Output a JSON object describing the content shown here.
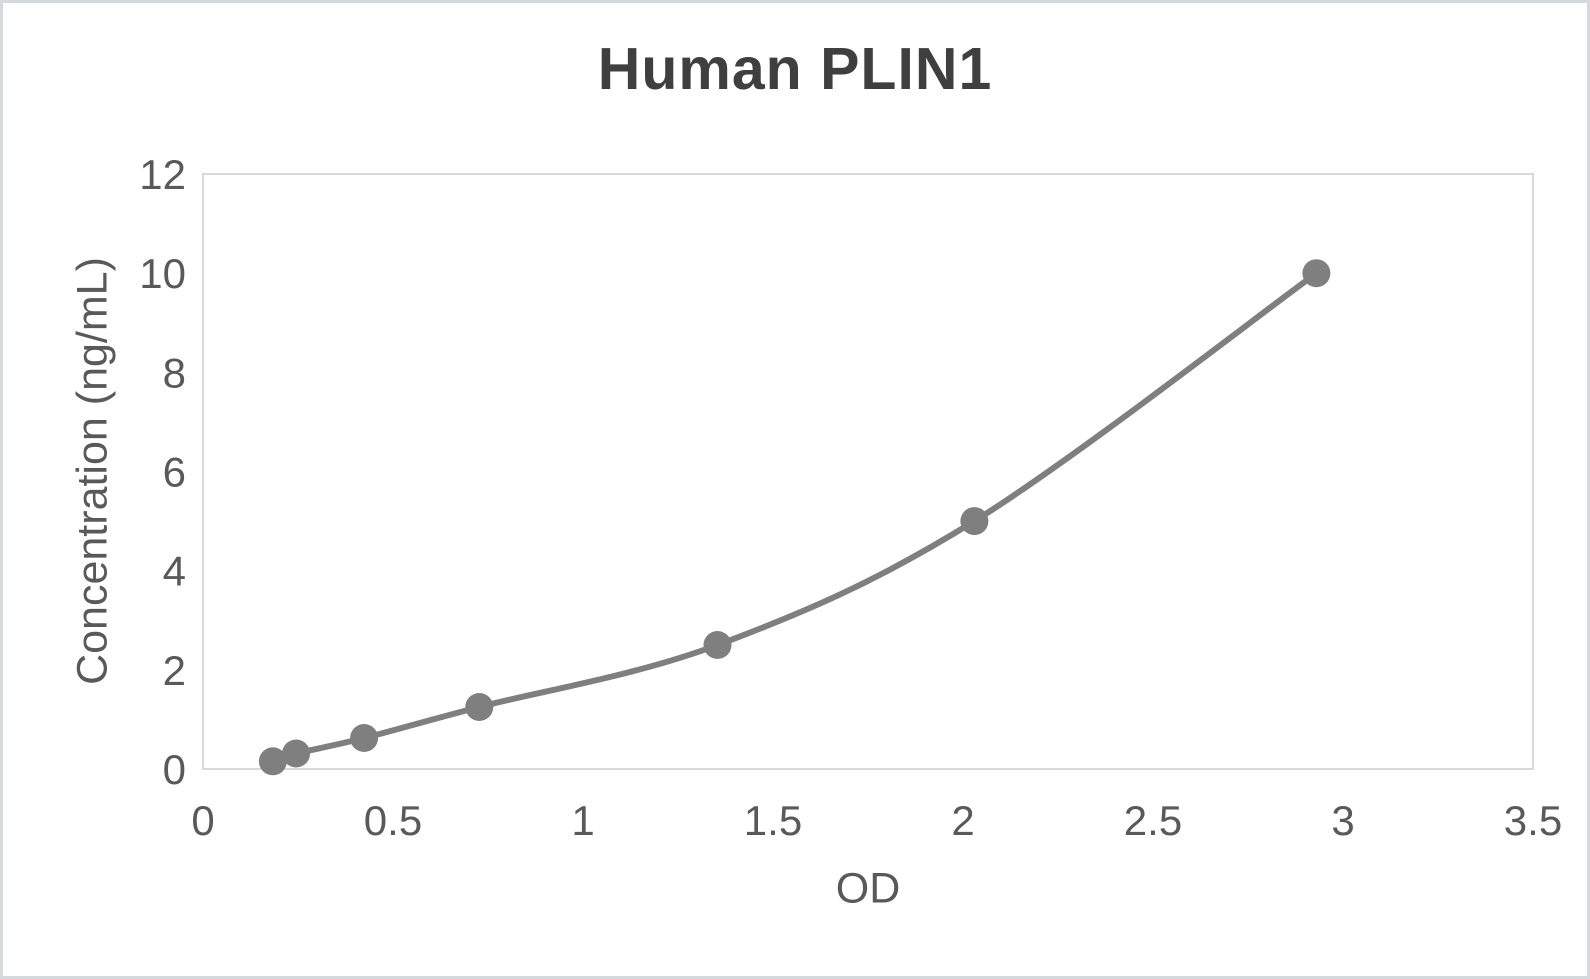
{
  "chart_data": {
    "type": "scatter",
    "line_style": "smooth",
    "marker": "circle",
    "title": "Human PLIN1",
    "xlabel": "OD",
    "ylabel": "Concentration (ng/mL)",
    "xlim": [
      0,
      3.5
    ],
    "ylim": [
      0,
      12
    ],
    "x_tick_labels": [
      "0",
      "0.5",
      "1",
      "1.5",
      "2",
      "2.5",
      "3",
      "3.5"
    ],
    "y_tick_labels": [
      "0",
      "2",
      "4",
      "6",
      "8",
      "10",
      "12"
    ],
    "grid": false,
    "legend": false,
    "series": [
      {
        "points": [
          {
            "x": 0.184,
            "y": 0.156
          },
          {
            "x": 0.245,
            "y": 0.3125
          },
          {
            "x": 0.424,
            "y": 0.625
          },
          {
            "x": 0.727,
            "y": 1.25
          },
          {
            "x": 1.354,
            "y": 2.5
          },
          {
            "x": 2.03,
            "y": 5
          },
          {
            "x": 2.93,
            "y": 10
          }
        ]
      }
    ],
    "colors": {
      "series": "#7f7f7f",
      "title_text": "#3f3f3f",
      "axis_text": "#595959",
      "plot_border": "#d9d9d9",
      "frame_border": "#d3d9dd",
      "background": "#ffffff"
    }
  }
}
